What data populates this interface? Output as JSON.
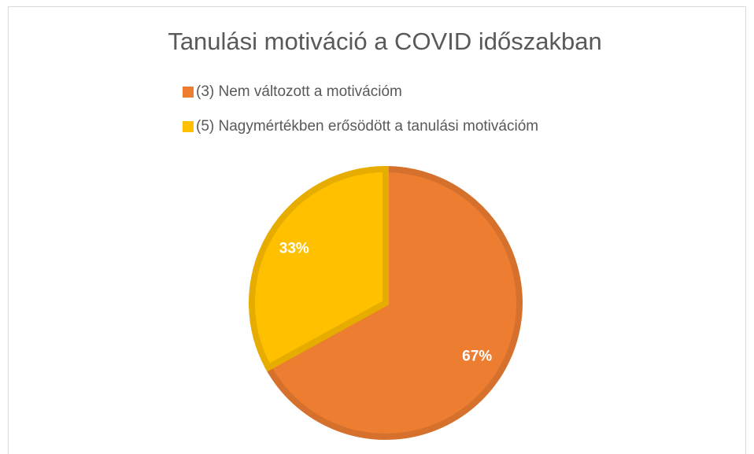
{
  "chart_data": {
    "type": "pie",
    "title": "Tanulási motiváció a COVID időszakban",
    "categories": [
      "(3) Nem változott a motivációm",
      "(5) Nagymértékben erősödött a tanulási motivációm"
    ],
    "values": [
      67,
      33
    ],
    "value_labels": [
      "67%",
      "33%"
    ],
    "colors": [
      "#ED7D31",
      "#FFC000"
    ],
    "legend": "top"
  }
}
